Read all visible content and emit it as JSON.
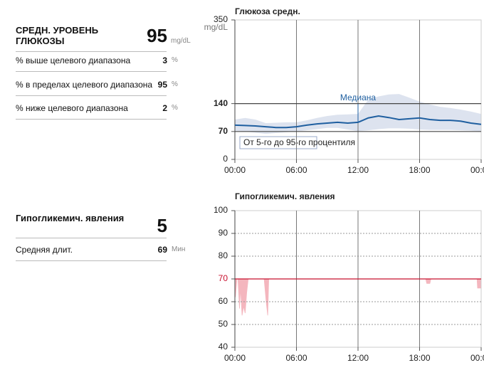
{
  "summary": {
    "title": "СРЕДН. УРОВЕНЬ ГЛЮКОЗЫ",
    "value": 95,
    "unit": "mg/dL",
    "rows": [
      {
        "label": "% выше целевого диапазона",
        "value": 3,
        "unit": "%"
      },
      {
        "label": "% в пределах целевого диапазона",
        "value": 95,
        "unit": "%"
      },
      {
        "label": "% ниже целевого диапазона",
        "value": 2,
        "unit": "%"
      }
    ]
  },
  "events_summary": {
    "title": "Гипогликемич. явления",
    "value": 5,
    "rows": [
      {
        "label": "Средняя длит.",
        "value": 69,
        "unit": "Мин"
      }
    ]
  },
  "chart_data": [
    {
      "type": "line",
      "title": "Глюкоза средн.",
      "y_unit": "mg/dL",
      "x": [
        0,
        1,
        2,
        3,
        4,
        5,
        6,
        7,
        8,
        9,
        10,
        11,
        12,
        13,
        14,
        15,
        16,
        17,
        18,
        19,
        20,
        21,
        22,
        23,
        24
      ],
      "xlim": [
        0,
        24
      ],
      "xticks": [
        {
          "value": 0,
          "label": "00:00"
        },
        {
          "value": 6,
          "label": "06:00"
        },
        {
          "value": 12,
          "label": "12:00"
        },
        {
          "value": 18,
          "label": "18:00"
        },
        {
          "value": 24,
          "label": "00:00"
        }
      ],
      "ylim": [
        0,
        350
      ],
      "yticks": [
        0,
        70,
        140,
        350
      ],
      "reference_lines": [
        70,
        140
      ],
      "series": [
        {
          "name": "Медиана",
          "color": "#1f5fa0",
          "values": [
            86,
            85,
            84,
            82,
            80,
            80,
            82,
            86,
            89,
            91,
            93,
            91,
            93,
            104,
            109,
            105,
            100,
            102,
            104,
            100,
            98,
            98,
            96,
            91,
            88
          ]
        },
        {
          "name": "От 5-го до 95-го процентиля",
          "color": "#dde3ef",
          "lower": [
            72,
            70,
            67,
            64,
            66,
            68,
            70,
            73,
            76,
            79,
            79,
            75,
            71,
            73,
            76,
            78,
            78,
            77,
            75,
            74,
            74,
            74,
            73,
            72,
            70
          ],
          "upper": [
            100,
            104,
            100,
            91,
            92,
            93,
            93,
            98,
            104,
            109,
            112,
            113,
            114,
            150,
            158,
            163,
            164,
            155,
            145,
            138,
            132,
            129,
            125,
            120,
            114
          ]
        }
      ]
    },
    {
      "type": "area",
      "title": "Гипогликемич. явления",
      "x": [
        0,
        0.05,
        0.2,
        0.25,
        0.3,
        0.45,
        0.55,
        0.7,
        0.85,
        1.0,
        1.15,
        1.3,
        2.1,
        2.85,
        3.05,
        3.2,
        3.3,
        10,
        18.6,
        18.7,
        19.0,
        19.1,
        21,
        23.6,
        23.65,
        23.95,
        24
      ],
      "xlim": [
        0,
        24
      ],
      "xticks": [
        {
          "value": 0,
          "label": "00:00"
        },
        {
          "value": 6,
          "label": "06:00"
        },
        {
          "value": 12,
          "label": "12:00"
        },
        {
          "value": 18,
          "label": "18:00"
        },
        {
          "value": 24,
          "label": "00:00"
        }
      ],
      "ylim": [
        40,
        100
      ],
      "yticks": [
        40,
        50,
        60,
        70,
        80,
        90,
        100
      ],
      "threshold": 70,
      "threshold_color": "#c8102e",
      "series": [
        {
          "color": "#f4b6be",
          "values": [
            70,
            62,
            70,
            null,
            70,
            57,
            66,
            54,
            58,
            55,
            64,
            70,
            null,
            70,
            60,
            54,
            70,
            null,
            70,
            68,
            68,
            70,
            null,
            70,
            66,
            66,
            70
          ]
        }
      ]
    }
  ]
}
